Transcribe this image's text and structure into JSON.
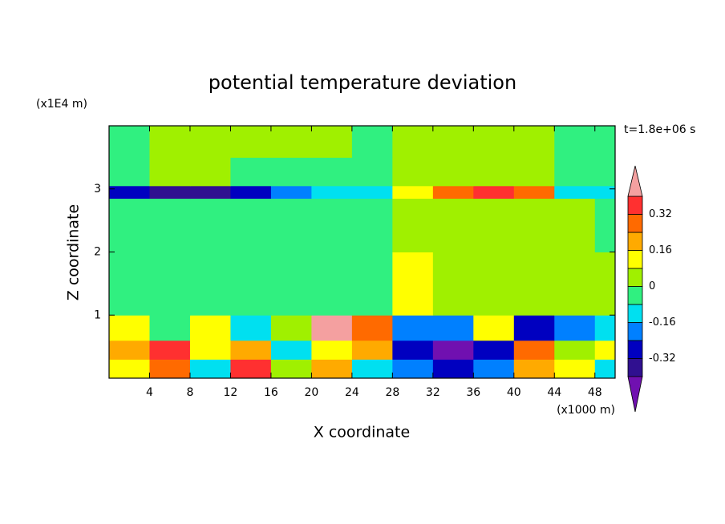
{
  "chart_data": {
    "type": "contour",
    "title": "potential temperature deviation",
    "x_label": "X coordinate",
    "y_label": "Z coordinate",
    "x_unit": "(x1000 m)",
    "y_unit": "(x1E4 m)",
    "annotation": "t=1.8e+06 s",
    "xlim": [
      0,
      50
    ],
    "ylim": [
      0,
      4
    ],
    "xticks": [
      4,
      8,
      12,
      16,
      20,
      24,
      28,
      32,
      36,
      40,
      44,
      48
    ],
    "yticks": [
      1,
      2,
      3
    ],
    "x_edges": [
      0,
      4,
      8,
      12,
      16,
      20,
      24,
      28,
      32,
      36,
      40,
      44,
      48,
      50
    ],
    "z_edges": [
      0,
      0.3,
      0.6,
      1,
      2,
      2.85,
      3.05,
      3.5,
      4
    ],
    "values": [
      [
        0.1,
        0.3,
        -0.1,
        0.35,
        0,
        0.2,
        -0.1,
        -0.2,
        -0.3,
        -0.2,
        0.2,
        0.1,
        -0.1
      ],
      [
        0.2,
        0.35,
        0.1,
        0.2,
        -0.1,
        0.1,
        0.2,
        -0.3,
        -0.45,
        -0.3,
        0.25,
        0.05,
        0.1
      ],
      [
        0.1,
        -0.05,
        0.15,
        -0.1,
        0.05,
        0.45,
        0.3,
        -0.2,
        -0.2,
        0.1,
        -0.3,
        -0.2,
        -0.1
      ],
      [
        -0.03,
        -0.03,
        -0.03,
        -0.03,
        -0.03,
        -0.03,
        -0.03,
        0.1,
        0.05,
        0.03,
        0.03,
        0.03,
        0.03
      ],
      [
        -0.03,
        -0.03,
        -0.03,
        -0.03,
        -0.03,
        -0.03,
        -0.03,
        0.03,
        0.03,
        0.03,
        0.03,
        0.03,
        -0.03
      ],
      [
        -0.3,
        -0.35,
        -0.35,
        -0.3,
        -0.2,
        -0.1,
        -0.1,
        0.1,
        0.3,
        0.35,
        0.3,
        -0.1,
        -0.1
      ],
      [
        -0.03,
        0.03,
        0.03,
        -0.03,
        -0.03,
        -0.03,
        -0.03,
        0.03,
        0.03,
        0.03,
        0.03,
        -0.03,
        -0.03
      ],
      [
        -0.03,
        0.03,
        0.03,
        0.03,
        0.03,
        0.03,
        -0.03,
        0.03,
        0.03,
        0.03,
        0.03,
        -0.03,
        -0.03
      ]
    ],
    "levels": [
      -0.4,
      -0.32,
      -0.24,
      -0.16,
      -0.08,
      0,
      0.08,
      0.16,
      0.24,
      0.32,
      0.4
    ],
    "colors": [
      "#7010b0",
      "#301090",
      "#0000c0",
      "#0080ff",
      "#00e0f0",
      "#30f080",
      "#a0f000",
      "#ffff00",
      "#ffaa00",
      "#ff6a00",
      "#ff3030",
      "#f4a0a0"
    ],
    "colorbar_ticks": [
      -0.32,
      -0.16,
      0,
      0.16,
      0.32
    ]
  }
}
